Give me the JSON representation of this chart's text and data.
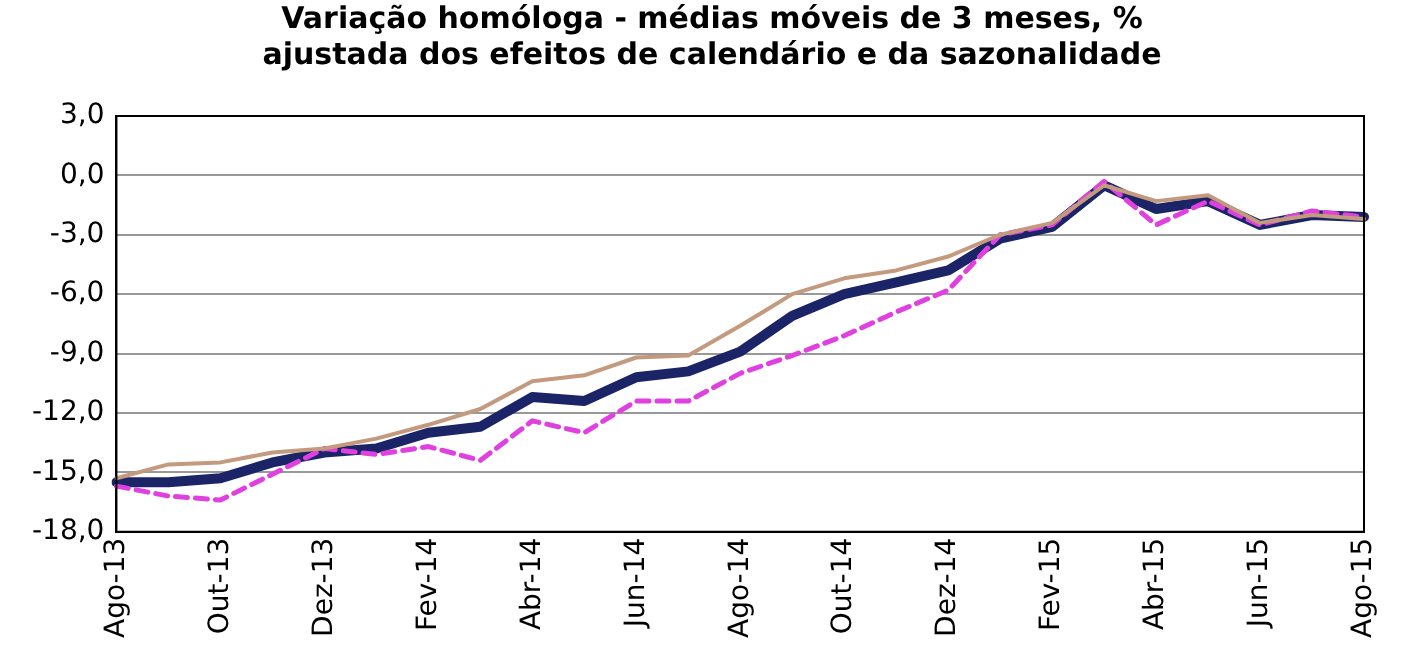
{
  "chart_data": {
    "type": "line",
    "title": "Variação homóloga - médias móveis de 3 meses, %",
    "subtitle": "ajustada dos efeitos de calendário e da sazonalidade",
    "categories": [
      "Ago-13",
      null,
      "Out-13",
      null,
      "Dez-13",
      null,
      "Fev-14",
      null,
      "Abr-14",
      null,
      "Jun-14",
      null,
      "Ago-14",
      null,
      "Out-14",
      null,
      "Dez-14",
      null,
      "Fev-15",
      null,
      "Abr-15",
      null,
      "Jun-15",
      null,
      "Ago-15"
    ],
    "series": [
      {
        "color": "#c49a7e",
        "values": [
          -15.3,
          -14.6,
          -14.5,
          -14.0,
          -13.8,
          -13.3,
          -12.6,
          -11.8,
          -10.4,
          -10.1,
          -9.2,
          -9.1,
          -7.6,
          -6.0,
          -5.2,
          -4.8,
          -4.1,
          -3.0,
          -2.4,
          -0.5,
          -1.3,
          -1.0,
          -2.4,
          -2.0,
          -2.2
        ]
      },
      {
        "color": "#e040e0",
        "line_style": "dashed",
        "values": [
          -15.7,
          -16.2,
          -16.4,
          -15.1,
          -13.8,
          -14.1,
          -13.7,
          -14.4,
          -12.4,
          -13.0,
          -11.4,
          -11.4,
          -10.0,
          -9.1,
          -8.1,
          -6.9,
          -5.8,
          -3.0,
          -2.5,
          -0.3,
          -2.5,
          -1.3,
          -2.5,
          -1.8,
          -2.1
        ]
      },
      {
        "color": "#1a2466",
        "values": [
          -15.5,
          -15.5,
          -15.3,
          -14.5,
          -14.0,
          -13.8,
          -13.0,
          -12.7,
          -11.2,
          -11.4,
          -10.2,
          -9.9,
          -8.9,
          -7.1,
          -6.0,
          -5.4,
          -4.8,
          -3.2,
          -2.6,
          -0.5,
          -1.7,
          -1.3,
          -2.5,
          -2.0,
          -2.1
        ]
      }
    ],
    "ylim": [
      -18,
      3
    ],
    "yticks": [
      {
        "value": 3,
        "label": "3,0"
      },
      {
        "value": 0,
        "label": "0,0"
      },
      {
        "value": -3,
        "label": "-3,0"
      },
      {
        "value": -6,
        "label": "-6,0"
      },
      {
        "value": -9,
        "label": "-9,0"
      },
      {
        "value": -12,
        "label": "-12,0"
      },
      {
        "value": -15,
        "label": "-15,0"
      },
      {
        "value": -18,
        "label": "-18,0"
      }
    ],
    "grid": "y",
    "legend": false,
    "marker": "none",
    "line_style": "solid"
  }
}
